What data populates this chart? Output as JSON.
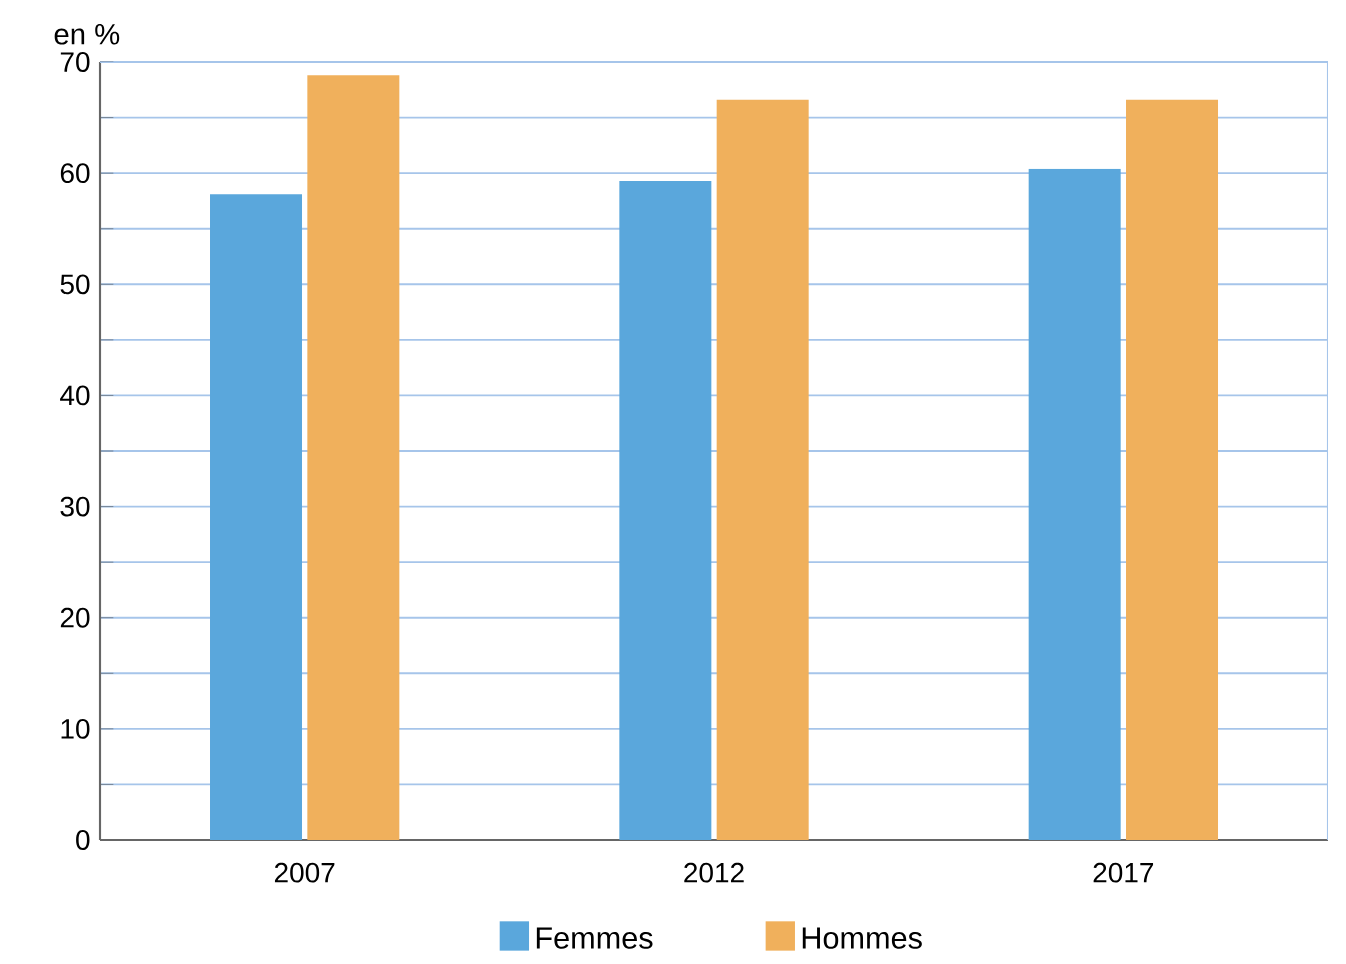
{
  "chart_data": {
    "type": "bar",
    "ylabel": "en %",
    "categories": [
      "2007",
      "2012",
      "2017"
    ],
    "series": [
      {
        "name": "Femmes",
        "color": "#5aa7dc",
        "values": [
          58.1,
          59.3,
          60.4
        ]
      },
      {
        "name": "Hommes",
        "color": "#f0b05c",
        "values": [
          68.8,
          66.6,
          66.6
        ]
      }
    ],
    "ylim": [
      0,
      70
    ],
    "yticks": [
      0,
      {
        "value": 5,
        "label": null
      },
      10,
      {
        "value": 15,
        "label": null
      },
      20,
      {
        "value": 25,
        "label": null
      },
      30,
      {
        "value": 35,
        "label": null
      },
      40,
      {
        "value": 45,
        "label": null
      },
      50,
      {
        "value": 55,
        "label": null
      },
      60,
      {
        "value": 65,
        "label": null
      },
      70
    ],
    "grid": "y",
    "legend": "bottom"
  }
}
